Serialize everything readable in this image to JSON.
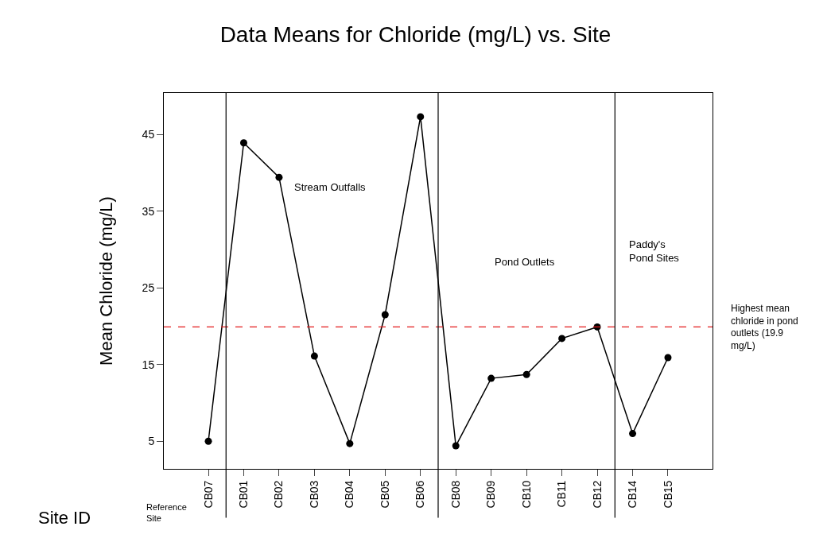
{
  "chart_data": {
    "type": "line",
    "title": "Data Means for Chloride (mg/L) vs. Site",
    "xlabel": "Site ID",
    "ylabel": "Mean Chloride (mg/L)",
    "categories": [
      "CB07",
      "CB01",
      "CB02",
      "CB03",
      "CB04",
      "CB05",
      "CB06",
      "CB08",
      "CB09",
      "CB10",
      "CB11",
      "CB12",
      "CB14",
      "CB15"
    ],
    "series": [
      {
        "color": "#000000",
        "values": [
          5.0,
          43.9,
          39.4,
          16.1,
          4.7,
          21.5,
          47.3,
          4.4,
          13.2,
          13.7,
          18.4,
          19.9,
          6.0,
          15.9
        ]
      }
    ],
    "ylim": [
      1.4,
      50.4
    ],
    "yticks": [
      5,
      15,
      25,
      35,
      45
    ],
    "marker": "circle",
    "line_style": "solid",
    "ref_lines": [
      {
        "axis": "y",
        "value": 19.9,
        "label": "Highest mean chloride in pond outlets (19.9 mg/L)",
        "color": "#e31a1c",
        "line_style": "dashed"
      }
    ],
    "annotations": [
      "Reference Site",
      "Stream Outfalls",
      "Pond Outlets",
      "Paddy's Pond Sites"
    ]
  }
}
